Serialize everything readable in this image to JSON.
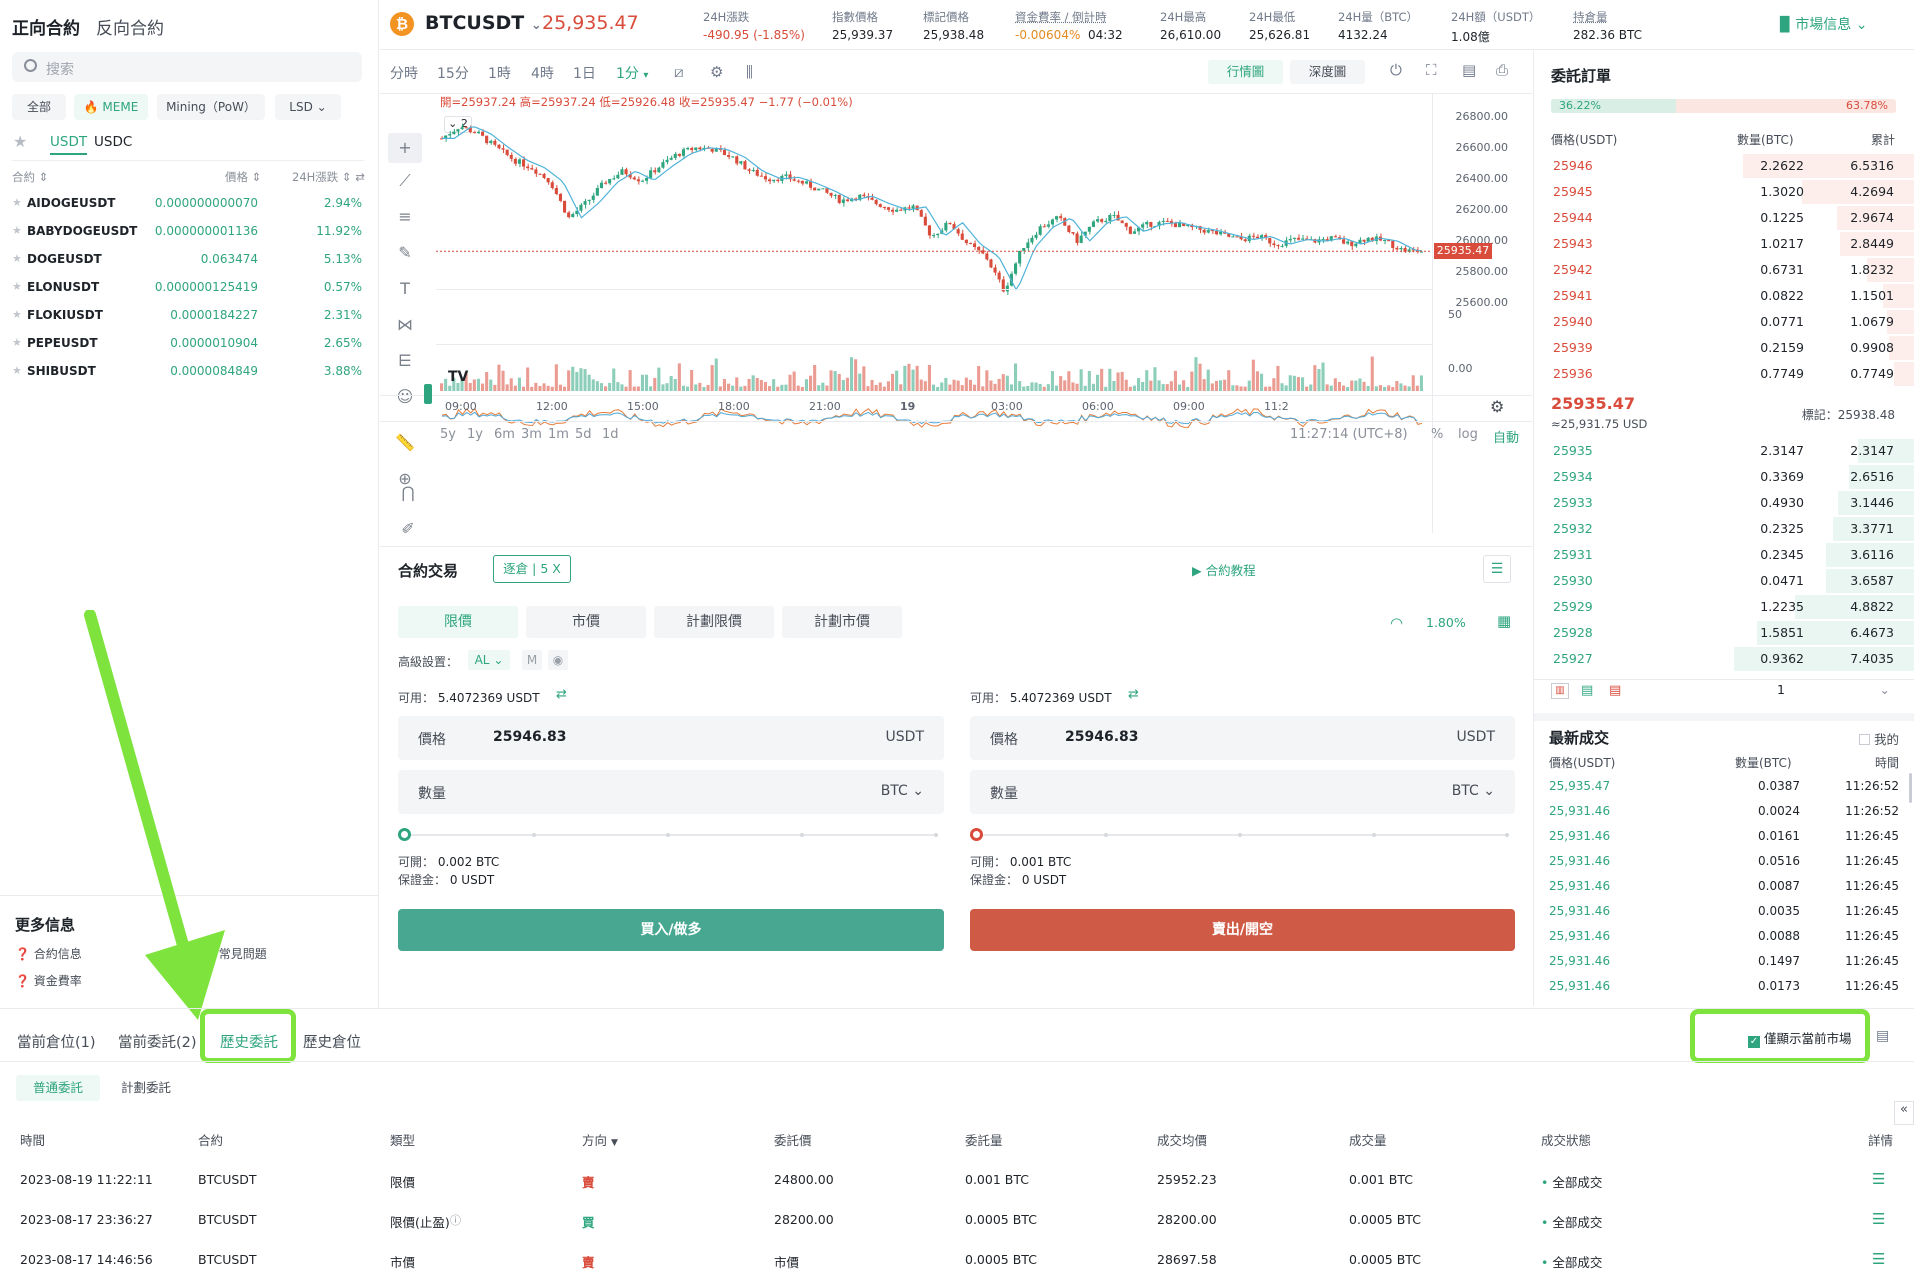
{
  "left": {
    "tabs": [
      "正向合約",
      "反向合約"
    ],
    "search_placeholder": "搜索",
    "chips": [
      "全部",
      "🔥 MEME",
      "Mining（PoW）",
      "LSD"
    ],
    "quote_tabs": [
      "USDT",
      "USDC"
    ],
    "col_contract": "合約 ⇕",
    "col_price": "價格 ⇕",
    "col_change": "24H漲跌 ⇕ ⇄",
    "pairs": [
      {
        "sym": "AIDOGEUSDT",
        "price": "0.000000000070",
        "chg": "2.94%"
      },
      {
        "sym": "BABYDOGEUSDT",
        "price": "0.000000001136",
        "chg": "11.92%"
      },
      {
        "sym": "DOGEUSDT",
        "price": "0.063474",
        "chg": "5.13%"
      },
      {
        "sym": "ELONUSDT",
        "price": "0.000000125419",
        "chg": "0.57%"
      },
      {
        "sym": "FLOKIUSDT",
        "price": "0.0000184227",
        "chg": "2.31%"
      },
      {
        "sym": "PEPEUSDT",
        "price": "0.0000010904",
        "chg": "2.65%"
      },
      {
        "sym": "SHIBUSDT",
        "price": "0.0000084849",
        "chg": "3.88%"
      }
    ],
    "more_info_title": "更多信息",
    "more_info_links": [
      "合約信息",
      "常見問題",
      "資金費率"
    ]
  },
  "header": {
    "symbol": "BTCUSDT",
    "last_price": "25,935.47",
    "stats": [
      {
        "label": "24H漲跌",
        "value": "-490.95 (-1.85%)"
      },
      {
        "label": "指數價格",
        "value": "25,939.37"
      },
      {
        "label": "標記價格",
        "value": "25,938.48"
      },
      {
        "label": "資金費率 / 倒計時",
        "value": "-0.00604%",
        "value2": "04:32"
      },
      {
        "label": "24H最高",
        "value": "26,610.00"
      },
      {
        "label": "24H最低",
        "value": "25,626.81"
      },
      {
        "label": "24H量（BTC）",
        "value": "4132.24"
      },
      {
        "label": "24H額（USDT）",
        "value": "1.08億"
      },
      {
        "label": "持倉量",
        "value": "282.36 BTC"
      }
    ],
    "market_info": "市場信息"
  },
  "chart": {
    "intervals": [
      "分時",
      "15分",
      "1時",
      "4時",
      "1日",
      "1分"
    ],
    "view_tabs": [
      "行情圖",
      "深度圖"
    ],
    "ohlc": "開=25937.24  高=25937.24  低=25926.48  收=25935.47  −1.77 (−0.01%)",
    "indicator_count": "2",
    "y_labels": [
      "26800.00",
      "26600.00",
      "26400.00",
      "26200.00",
      "26000.00",
      "25800.00",
      "25600.00"
    ],
    "price_tag": "25935.47",
    "vol_label": "50",
    "osc_label": "0.00",
    "x_labels": [
      "09:00",
      "12:00",
      "15:00",
      "18:00",
      "21:00",
      "19",
      "03:00",
      "06:00",
      "09:00",
      "11:2"
    ],
    "ranges": [
      "5y",
      "1y",
      "6m",
      "3m",
      "1m",
      "5d",
      "1d"
    ],
    "time_display": "11:27:14 (UTC+8)",
    "scale_opts": [
      "%",
      "log",
      "自動"
    ]
  },
  "chart_data": {
    "type": "line",
    "title": "BTCUSDT",
    "ylim": [
      25500,
      26900
    ],
    "y_ticks": [
      25600,
      25800,
      26000,
      26200,
      26400,
      26600,
      26800
    ],
    "x_ticks": [
      "09:00",
      "12:00",
      "15:00",
      "18:00",
      "21:00",
      "19",
      "03:00",
      "06:00",
      "09:00",
      "11:2"
    ],
    "series": [
      {
        "values": [
          26660,
          26740,
          26690,
          26600,
          26520,
          26470,
          26380,
          26150,
          26250,
          26380,
          26450,
          26390,
          26480,
          26560,
          26600,
          26590,
          26540,
          26450,
          26400,
          26410,
          26370,
          26320,
          26260,
          26290,
          26240,
          26200,
          26220,
          26030,
          26120,
          25980,
          25900,
          25680,
          25960,
          26090,
          26150,
          26000,
          26120,
          26160,
          26060,
          26110,
          26120,
          26090,
          26070,
          26040,
          26010,
          26030,
          25980,
          26010,
          26000,
          26020,
          25980,
          26020,
          26000,
          25940,
          25935
        ]
      }
    ],
    "last_price": 25935.47
  },
  "book": {
    "title": "委託訂單",
    "buy_ratio": "36.22%",
    "sell_ratio": "63.78%",
    "cols": [
      "價格(USDT)",
      "數量(BTC)",
      "累計"
    ],
    "asks": [
      {
        "p": "25946",
        "q": "2.2622",
        "t": "6.5316",
        "d": 0.95
      },
      {
        "p": "25945",
        "q": "1.3020",
        "t": "4.2694",
        "d": 0.62
      },
      {
        "p": "25944",
        "q": "0.1225",
        "t": "2.9674",
        "d": 0.43
      },
      {
        "p": "25943",
        "q": "1.0217",
        "t": "2.8449",
        "d": 0.41
      },
      {
        "p": "25942",
        "q": "0.6731",
        "t": "1.8232",
        "d": 0.26
      },
      {
        "p": "25941",
        "q": "0.0822",
        "t": "1.1501",
        "d": 0.17
      },
      {
        "p": "25940",
        "q": "0.0771",
        "t": "1.0679",
        "d": 0.15
      },
      {
        "p": "25939",
        "q": "0.2159",
        "t": "0.9908",
        "d": 0.14
      },
      {
        "p": "25936",
        "q": "0.7749",
        "t": "0.7749",
        "d": 0.11
      }
    ],
    "mid_price": "25935.47",
    "mid_usd": "≈25,931.75 USD",
    "mark": "標記：25938.48",
    "bids": [
      {
        "p": "25935",
        "q": "2.3147",
        "t": "2.3147",
        "d": 0.31
      },
      {
        "p": "25934",
        "q": "0.3369",
        "t": "2.6516",
        "d": 0.36
      },
      {
        "p": "25933",
        "q": "0.4930",
        "t": "3.1446",
        "d": 0.42
      },
      {
        "p": "25932",
        "q": "0.2325",
        "t": "3.3771",
        "d": 0.45
      },
      {
        "p": "25931",
        "q": "0.2345",
        "t": "3.6116",
        "d": 0.49
      },
      {
        "p": "25930",
        "q": "0.0471",
        "t": "3.6587",
        "d": 0.49
      },
      {
        "p": "25929",
        "q": "1.2235",
        "t": "4.8822",
        "d": 0.66
      },
      {
        "p": "25928",
        "q": "1.5851",
        "t": "6.4673",
        "d": 0.87
      },
      {
        "p": "25927",
        "q": "0.9362",
        "t": "7.4035",
        "d": 1.0
      }
    ],
    "depth_select": "1",
    "trades_title": "最新成交",
    "my_label": "我的",
    "trade_cols": [
      "價格(USDT)",
      "數量(BTC)",
      "時間"
    ],
    "trades": [
      {
        "p": "25,935.47",
        "q": "0.0387",
        "t": "11:26:52"
      },
      {
        "p": "25,931.46",
        "q": "0.0024",
        "t": "11:26:52"
      },
      {
        "p": "25,931.46",
        "q": "0.0161",
        "t": "11:26:45"
      },
      {
        "p": "25,931.46",
        "q": "0.0516",
        "t": "11:26:45"
      },
      {
        "p": "25,931.46",
        "q": "0.0087",
        "t": "11:26:45"
      },
      {
        "p": "25,931.46",
        "q": "0.0035",
        "t": "11:26:45"
      },
      {
        "p": "25,931.46",
        "q": "0.0088",
        "t": "11:26:45"
      },
      {
        "p": "25,931.46",
        "q": "0.1497",
        "t": "11:26:45"
      },
      {
        "p": "25,931.46",
        "q": "0.0173",
        "t": "11:26:45"
      }
    ]
  },
  "form": {
    "title": "合約交易",
    "margin_mode": "逐倉 | 5 X",
    "tutorial": "合約教程",
    "order_types": [
      "限價",
      "市價",
      "計劃限價",
      "計劃市價"
    ],
    "risk": "1.80%",
    "advanced_label": "高級設置：",
    "adv_opts": [
      "AL",
      "M"
    ],
    "buy": {
      "avail_label": "可用：",
      "avail": "5.4072369 USDT",
      "price_label": "價格",
      "price": "25946.83",
      "price_unit": "USDT",
      "qty_label": "數量",
      "qty_unit": "BTC",
      "open_label": "可開：",
      "open": "0.002 BTC",
      "margin_label": "保證金：",
      "margin": "0 USDT",
      "button": "買入/做多"
    },
    "sell": {
      "avail_label": "可用：",
      "avail": "5.4072369 USDT",
      "price_label": "價格",
      "price": "25946.83",
      "price_unit": "USDT",
      "qty_label": "數量",
      "qty_unit": "BTC",
      "open_label": "可開：",
      "open": "0.001 BTC",
      "margin_label": "保證金：",
      "margin": "0 USDT",
      "button": "賣出/開空"
    }
  },
  "bottom": {
    "tabs": [
      "當前倉位(1)",
      "當前委託(2)",
      "歷史委託",
      "歷史倉位"
    ],
    "only_current": "僅顯示當前市場",
    "subtabs": [
      "普通委託",
      "計劃委託"
    ],
    "cols": [
      "時間",
      "合約",
      "類型",
      "方向",
      "委託價",
      "委託量",
      "成交均價",
      "成交量",
      "成交狀態",
      "詳情"
    ],
    "rows": [
      {
        "time": "2023-08-19 11:22:11",
        "sym": "BTCUSDT",
        "type": "限價",
        "side": "賣",
        "price": "24800.00",
        "qty": "0.001 BTC",
        "avg": "25952.23",
        "filled": "0.001 BTC",
        "status": "全部成交"
      },
      {
        "time": "2023-08-17 23:36:27",
        "sym": "BTCUSDT",
        "type": "限價(止盈)",
        "side": "買",
        "price": "28200.00",
        "qty": "0.0005 BTC",
        "avg": "28200.00",
        "filled": "0.0005 BTC",
        "status": "全部成交"
      },
      {
        "time": "2023-08-17 14:46:56",
        "sym": "BTCUSDT",
        "type": "市價",
        "side": "賣",
        "price": "市價",
        "qty": "0.0005 BTC",
        "avg": "28697.58",
        "filled": "0.0005 BTC",
        "status": "全部成交"
      }
    ]
  },
  "colors": {
    "green": "#2ea57f",
    "red": "#d94b3a",
    "highlight": "#7ee33c"
  }
}
